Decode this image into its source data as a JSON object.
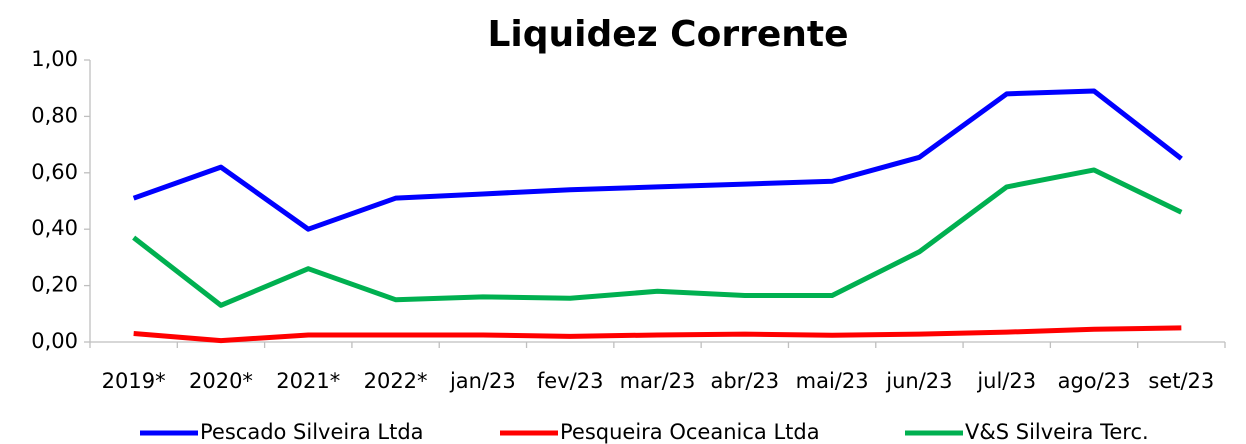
{
  "chart_data": {
    "type": "line",
    "title": "Liquidez Corrente",
    "categories": [
      "2019*",
      "2020*",
      "2021*",
      "2022*",
      "jan/23",
      "fev/23",
      "mar/23",
      "abr/23",
      "mai/23",
      "jun/23",
      "jul/23",
      "ago/23",
      "set/23"
    ],
    "series": [
      {
        "name": "Pescado Silveira Ltda",
        "color": "#0000ff",
        "values": [
          0.51,
          0.62,
          0.4,
          0.51,
          0.525,
          0.54,
          0.55,
          0.56,
          0.57,
          0.655,
          0.88,
          0.89,
          0.65
        ]
      },
      {
        "name": "Pesqueira Oceanica Ltda",
        "color": "#ff0000",
        "values": [
          0.03,
          0.005,
          0.025,
          0.025,
          0.025,
          0.02,
          0.025,
          0.028,
          0.024,
          0.028,
          0.035,
          0.045,
          0.05
        ]
      },
      {
        "name": "V&S Silveira Terc.",
        "color": "#00b050",
        "values": [
          0.37,
          0.13,
          0.26,
          0.15,
          0.16,
          0.155,
          0.18,
          0.165,
          0.165,
          0.32,
          0.55,
          0.61,
          0.46
        ]
      }
    ],
    "ylim": [
      0,
      1
    ],
    "yticks": [
      {
        "value": 0,
        "label": "0,00"
      },
      {
        "value": 0.2,
        "label": "0,20"
      },
      {
        "value": 0.4,
        "label": "0,40"
      },
      {
        "value": 0.6,
        "label": "0,60"
      },
      {
        "value": 0.8,
        "label": "0,80"
      },
      {
        "value": 1,
        "label": "1,00"
      }
    ],
    "grid": false,
    "legend": "bottom"
  }
}
